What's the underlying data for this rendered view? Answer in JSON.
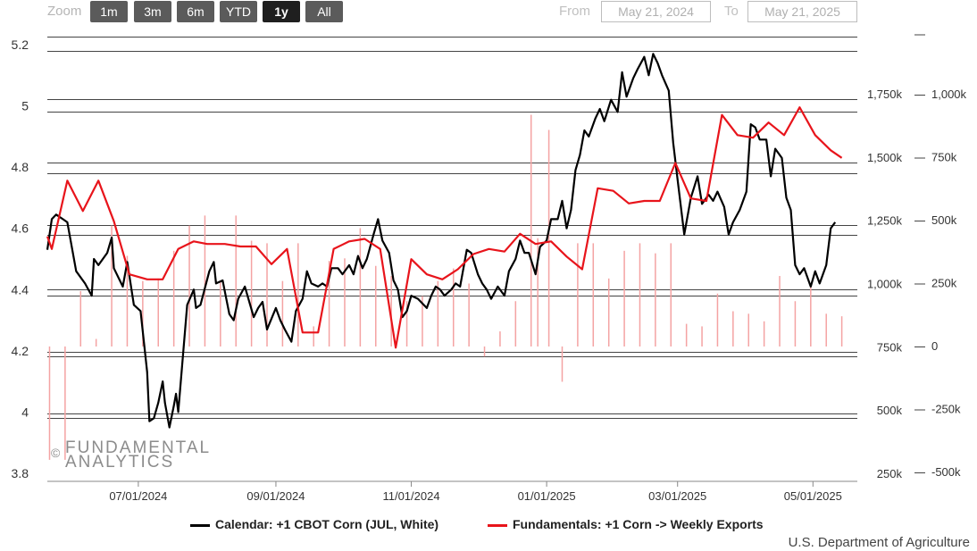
{
  "toolbar": {
    "zoom_label": "Zoom",
    "buttons": [
      "1m",
      "3m",
      "6m",
      "YTD",
      "1y",
      "All"
    ],
    "active": "1y",
    "from_label": "From",
    "from_value": "May 21, 2024",
    "to_label": "To",
    "to_value": "May 21, 2025"
  },
  "watermark": {
    "symbol": "©",
    "line1": "FUNDAMENTAL",
    "line2": "ANALYTICS"
  },
  "source": "U.S. Department of Agriculture",
  "colors": {
    "calendar": "#000000",
    "fundamentals": "#e8141b",
    "bars": "#f4a3a3"
  },
  "chart_data": {
    "type": "line",
    "x_range": [
      "2024-05-21",
      "2025-05-21"
    ],
    "x_ticks": [
      "07/01/2024",
      "09/01/2024",
      "11/01/2024",
      "01/01/2025",
      "03/01/2025",
      "05/01/2025"
    ],
    "y_left": {
      "ylim": [
        3.8,
        5.2
      ],
      "ticks": [
        "5.2",
        "5",
        "4.8",
        "4.6",
        "4.4",
        "4.2",
        "4",
        "3.8"
      ]
    },
    "y_right_1": {
      "ylim": [
        250,
        1750
      ],
      "ticks": [
        "1,750k",
        "1,500k",
        "1,250k",
        "1,000k",
        "750k",
        "500k",
        "250k"
      ]
    },
    "y_right_2": {
      "ylim": [
        -500,
        1000
      ],
      "ticks": [
        "1,000k",
        "750k",
        "500k",
        "250k",
        "0",
        "-250k",
        "-500k"
      ]
    },
    "series": [
      {
        "name": "Calendar: +1 CBOT Corn (JUL, White)",
        "axis": "left",
        "points": [
          [
            "2024-05-21",
            4.53
          ],
          [
            "2024-05-23",
            4.63
          ],
          [
            "2024-05-25",
            4.645
          ],
          [
            "2024-05-28",
            4.63
          ],
          [
            "2024-05-30",
            4.62
          ],
          [
            "2024-06-03",
            4.46
          ],
          [
            "2024-06-07",
            4.42
          ],
          [
            "2024-06-10",
            4.38
          ],
          [
            "2024-06-11",
            4.5
          ],
          [
            "2024-06-13",
            4.48
          ],
          [
            "2024-06-17",
            4.52
          ],
          [
            "2024-06-19",
            4.57
          ],
          [
            "2024-06-20",
            4.47
          ],
          [
            "2024-06-24",
            4.41
          ],
          [
            "2024-06-26",
            4.49
          ],
          [
            "2024-06-29",
            4.35
          ],
          [
            "2024-07-02",
            4.33
          ],
          [
            "2024-07-05",
            4.13
          ],
          [
            "2024-07-06",
            3.97
          ],
          [
            "2024-07-08",
            3.98
          ],
          [
            "2024-07-10",
            4.03
          ],
          [
            "2024-07-12",
            4.1
          ],
          [
            "2024-07-13",
            4.03
          ],
          [
            "2024-07-15",
            3.95
          ],
          [
            "2024-07-17",
            4.02
          ],
          [
            "2024-07-18",
            4.06
          ],
          [
            "2024-07-19",
            4.0
          ],
          [
            "2024-07-23",
            4.35
          ],
          [
            "2024-07-26",
            4.4
          ],
          [
            "2024-07-27",
            4.34
          ],
          [
            "2024-07-29",
            4.35
          ],
          [
            "2024-08-02",
            4.46
          ],
          [
            "2024-08-04",
            4.49
          ],
          [
            "2024-08-05",
            4.42
          ],
          [
            "2024-08-08",
            4.43
          ],
          [
            "2024-08-11",
            4.32
          ],
          [
            "2024-08-13",
            4.3
          ],
          [
            "2024-08-15",
            4.37
          ],
          [
            "2024-08-18",
            4.41
          ],
          [
            "2024-08-22",
            4.31
          ],
          [
            "2024-08-24",
            4.34
          ],
          [
            "2024-08-26",
            4.36
          ],
          [
            "2024-08-28",
            4.27
          ],
          [
            "2024-09-01",
            4.34
          ],
          [
            "2024-09-03",
            4.3
          ],
          [
            "2024-09-05",
            4.27
          ],
          [
            "2024-09-08",
            4.23
          ],
          [
            "2024-09-10",
            4.33
          ],
          [
            "2024-09-13",
            4.37
          ],
          [
            "2024-09-15",
            4.46
          ],
          [
            "2024-09-17",
            4.42
          ],
          [
            "2024-09-20",
            4.41
          ],
          [
            "2024-09-22",
            4.42
          ],
          [
            "2024-09-24",
            4.41
          ],
          [
            "2024-09-26",
            4.47
          ],
          [
            "2024-09-29",
            4.47
          ],
          [
            "2024-10-01",
            4.45
          ],
          [
            "2024-10-04",
            4.48
          ],
          [
            "2024-10-06",
            4.45
          ],
          [
            "2024-10-08",
            4.51
          ],
          [
            "2024-10-10",
            4.47
          ],
          [
            "2024-10-12",
            4.5
          ],
          [
            "2024-10-15",
            4.58
          ],
          [
            "2024-10-17",
            4.63
          ],
          [
            "2024-10-19",
            4.56
          ],
          [
            "2024-10-22",
            4.52
          ],
          [
            "2024-10-24",
            4.43
          ],
          [
            "2024-10-26",
            4.4
          ],
          [
            "2024-10-28",
            4.31
          ],
          [
            "2024-10-30",
            4.33
          ],
          [
            "2024-11-01",
            4.38
          ],
          [
            "2024-11-04",
            4.37
          ],
          [
            "2024-11-08",
            4.34
          ],
          [
            "2024-11-10",
            4.38
          ],
          [
            "2024-11-12",
            4.41
          ],
          [
            "2024-11-14",
            4.4
          ],
          [
            "2024-11-16",
            4.38
          ],
          [
            "2024-11-19",
            4.4
          ],
          [
            "2024-11-21",
            4.42
          ],
          [
            "2024-11-23",
            4.41
          ],
          [
            "2024-11-26",
            4.53
          ],
          [
            "2024-11-28",
            4.52
          ],
          [
            "2024-12-01",
            4.45
          ],
          [
            "2024-12-03",
            4.42
          ],
          [
            "2024-12-05",
            4.4
          ],
          [
            "2024-12-07",
            4.37
          ],
          [
            "2024-12-10",
            4.41
          ],
          [
            "2024-12-13",
            4.38
          ],
          [
            "2024-12-15",
            4.46
          ],
          [
            "2024-12-18",
            4.5
          ],
          [
            "2024-12-20",
            4.56
          ],
          [
            "2024-12-22",
            4.52
          ],
          [
            "2024-12-24",
            4.52
          ],
          [
            "2024-12-27",
            4.45
          ],
          [
            "2024-12-29",
            4.54
          ],
          [
            "2025-01-01",
            4.56
          ],
          [
            "2025-01-03",
            4.63
          ],
          [
            "2025-01-06",
            4.63
          ],
          [
            "2025-01-08",
            4.69
          ],
          [
            "2025-01-10",
            4.6
          ],
          [
            "2025-01-12",
            4.66
          ],
          [
            "2025-01-14",
            4.79
          ],
          [
            "2025-01-16",
            4.84
          ],
          [
            "2025-01-18",
            4.92
          ],
          [
            "2025-01-20",
            4.9
          ],
          [
            "2025-01-23",
            4.96
          ],
          [
            "2025-01-25",
            4.99
          ],
          [
            "2025-01-27",
            4.95
          ],
          [
            "2025-01-30",
            5.02
          ],
          [
            "2025-02-02",
            4.98
          ],
          [
            "2025-02-04",
            5.11
          ],
          [
            "2025-02-06",
            5.03
          ],
          [
            "2025-02-09",
            5.09
          ],
          [
            "2025-02-11",
            5.12
          ],
          [
            "2025-02-14",
            5.16
          ],
          [
            "2025-02-16",
            5.1
          ],
          [
            "2025-02-18",
            5.17
          ],
          [
            "2025-02-20",
            5.14
          ],
          [
            "2025-02-22",
            5.1
          ],
          [
            "2025-02-25",
            5.05
          ],
          [
            "2025-02-27",
            4.88
          ],
          [
            "2025-03-01",
            4.76
          ],
          [
            "2025-03-04",
            4.58
          ],
          [
            "2025-03-07",
            4.7
          ],
          [
            "2025-03-10",
            4.77
          ],
          [
            "2025-03-12",
            4.68
          ],
          [
            "2025-03-15",
            4.71
          ],
          [
            "2025-03-17",
            4.69
          ],
          [
            "2025-03-19",
            4.72
          ],
          [
            "2025-03-22",
            4.67
          ],
          [
            "2025-03-24",
            4.58
          ],
          [
            "2025-03-26",
            4.62
          ],
          [
            "2025-03-29",
            4.66
          ],
          [
            "2025-04-01",
            4.72
          ],
          [
            "2025-04-03",
            4.94
          ],
          [
            "2025-04-05",
            4.93
          ],
          [
            "2025-04-07",
            4.89
          ],
          [
            "2025-04-10",
            4.89
          ],
          [
            "2025-04-12",
            4.77
          ],
          [
            "2025-04-14",
            4.86
          ],
          [
            "2025-04-17",
            4.83
          ],
          [
            "2025-04-19",
            4.7
          ],
          [
            "2025-04-21",
            4.66
          ],
          [
            "2025-04-23",
            4.48
          ],
          [
            "2025-04-25",
            4.45
          ],
          [
            "2025-04-27",
            4.47
          ],
          [
            "2025-04-30",
            4.41
          ],
          [
            "2025-05-02",
            4.46
          ],
          [
            "2025-05-04",
            4.42
          ],
          [
            "2025-05-07",
            4.48
          ],
          [
            "2025-05-09",
            4.6
          ],
          [
            "2025-05-11",
            4.62
          ]
        ]
      },
      {
        "name": "Fundamentals: +1 Corn -> Weekly Exports",
        "axis": "right_1",
        "points": [
          [
            "2024-05-21",
            1190
          ],
          [
            "2024-05-23",
            1140
          ],
          [
            "2024-05-30",
            1410
          ],
          [
            "2024-06-06",
            1290
          ],
          [
            "2024-06-13",
            1410
          ],
          [
            "2024-06-20",
            1250
          ],
          [
            "2024-06-27",
            1040
          ],
          [
            "2024-07-05",
            1020
          ],
          [
            "2024-07-12",
            1020
          ],
          [
            "2024-07-19",
            1140
          ],
          [
            "2024-07-26",
            1170
          ],
          [
            "2024-08-01",
            1160
          ],
          [
            "2024-08-09",
            1160
          ],
          [
            "2024-08-16",
            1150
          ],
          [
            "2024-08-23",
            1150
          ],
          [
            "2024-08-30",
            1080
          ],
          [
            "2024-09-06",
            1140
          ],
          [
            "2024-09-13",
            810
          ],
          [
            "2024-09-20",
            810
          ],
          [
            "2024-09-27",
            1140
          ],
          [
            "2024-10-04",
            1170
          ],
          [
            "2024-10-11",
            1180
          ],
          [
            "2024-10-18",
            1140
          ],
          [
            "2024-10-25",
            750
          ],
          [
            "2024-11-01",
            1100
          ],
          [
            "2024-11-08",
            1040
          ],
          [
            "2024-11-15",
            1020
          ],
          [
            "2024-11-22",
            1060
          ],
          [
            "2024-11-29",
            1120
          ],
          [
            "2024-12-06",
            1140
          ],
          [
            "2024-12-13",
            1130
          ],
          [
            "2024-12-20",
            1200
          ],
          [
            "2024-12-27",
            1160
          ],
          [
            "2025-01-03",
            1170
          ],
          [
            "2025-01-10",
            1110
          ],
          [
            "2025-01-17",
            1060
          ],
          [
            "2025-01-24",
            1380
          ],
          [
            "2025-01-31",
            1370
          ],
          [
            "2025-02-07",
            1320
          ],
          [
            "2025-02-14",
            1330
          ],
          [
            "2025-02-21",
            1330
          ],
          [
            "2025-02-28",
            1480
          ],
          [
            "2025-03-07",
            1340
          ],
          [
            "2025-03-14",
            1330
          ],
          [
            "2025-03-21",
            1670
          ],
          [
            "2025-03-28",
            1590
          ],
          [
            "2025-04-04",
            1580
          ],
          [
            "2025-04-11",
            1640
          ],
          [
            "2025-04-18",
            1590
          ],
          [
            "2025-04-25",
            1700
          ],
          [
            "2025-05-02",
            1590
          ],
          [
            "2025-05-09",
            1530
          ],
          [
            "2025-05-14",
            1500
          ]
        ]
      },
      {
        "name": "",
        "type": "bar",
        "axis": "right_2",
        "points": [
          [
            "2024-05-22",
            -450
          ],
          [
            "2024-05-29",
            -450
          ],
          [
            "2024-06-05",
            220
          ],
          [
            "2024-06-12",
            30
          ],
          [
            "2024-06-19",
            480
          ],
          [
            "2024-06-26",
            360
          ],
          [
            "2024-07-03",
            260
          ],
          [
            "2024-07-10",
            270
          ],
          [
            "2024-07-17",
            380
          ],
          [
            "2024-07-24",
            480
          ],
          [
            "2024-07-31",
            520
          ],
          [
            "2024-08-07",
            260
          ],
          [
            "2024-08-14",
            520
          ],
          [
            "2024-08-21",
            420
          ],
          [
            "2024-08-28",
            410
          ],
          [
            "2024-09-04",
            260
          ],
          [
            "2024-09-11",
            410
          ],
          [
            "2024-09-18",
            80
          ],
          [
            "2024-09-25",
            340
          ],
          [
            "2024-10-02",
            350
          ],
          [
            "2024-10-09",
            470
          ],
          [
            "2024-10-16",
            320
          ],
          [
            "2024-10-23",
            280
          ],
          [
            "2024-10-30",
            180
          ],
          [
            "2024-11-06",
            200
          ],
          [
            "2024-11-13",
            260
          ],
          [
            "2024-11-20",
            310
          ],
          [
            "2024-11-27",
            250
          ],
          [
            "2024-12-04",
            -40
          ],
          [
            "2024-12-11",
            60
          ],
          [
            "2024-12-18",
            180
          ],
          [
            "2024-12-25",
            920
          ],
          [
            "2024-12-28",
            430
          ],
          [
            "2025-01-02",
            860
          ],
          [
            "2025-01-08",
            -140
          ],
          [
            "2025-01-15",
            410
          ],
          [
            "2025-01-22",
            410
          ],
          [
            "2025-01-29",
            270
          ],
          [
            "2025-02-05",
            380
          ],
          [
            "2025-02-12",
            410
          ],
          [
            "2025-02-19",
            370
          ],
          [
            "2025-02-26",
            410
          ],
          [
            "2025-03-05",
            90
          ],
          [
            "2025-03-12",
            80
          ],
          [
            "2025-03-19",
            210
          ],
          [
            "2025-03-26",
            140
          ],
          [
            "2025-04-02",
            130
          ],
          [
            "2025-04-09",
            100
          ],
          [
            "2025-04-16",
            280
          ],
          [
            "2025-04-23",
            180
          ],
          [
            "2025-04-30",
            240
          ],
          [
            "2025-05-07",
            130
          ],
          [
            "2025-05-14",
            120
          ]
        ]
      }
    ]
  },
  "legend": {
    "calendar": "Calendar: +1 CBOT Corn (JUL, White)",
    "fundamentals": "Fundamentals: +1 Corn -> Weekly Exports"
  }
}
